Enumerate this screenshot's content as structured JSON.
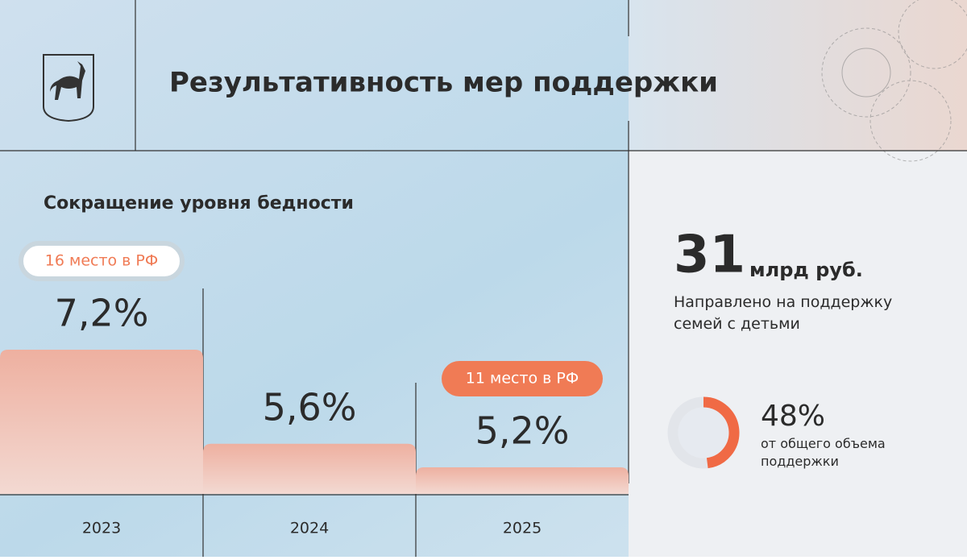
{
  "title": "Результативность мер поддержки",
  "chart_data": [
    {
      "type": "bar",
      "title": "Сокращение уровня бедности",
      "categories": [
        "2023",
        "2024",
        "2025"
      ],
      "values": [
        7.2,
        5.6,
        5.2
      ],
      "value_labels": [
        "7,2%",
        "5,6%",
        "5,2%"
      ],
      "annotations": [
        "16 место в РФ",
        null,
        "11 место в РФ"
      ],
      "color": "#eeb3a4"
    },
    {
      "type": "pie",
      "values": [
        48
      ],
      "value_labels": [
        "48%"
      ],
      "subtitle": "от общего объема поддержки",
      "color": "#f06a45"
    }
  ],
  "stat": {
    "value": 31,
    "unit": "млрд руб.",
    "caption": "Направлено на поддержку семей с детьми"
  }
}
